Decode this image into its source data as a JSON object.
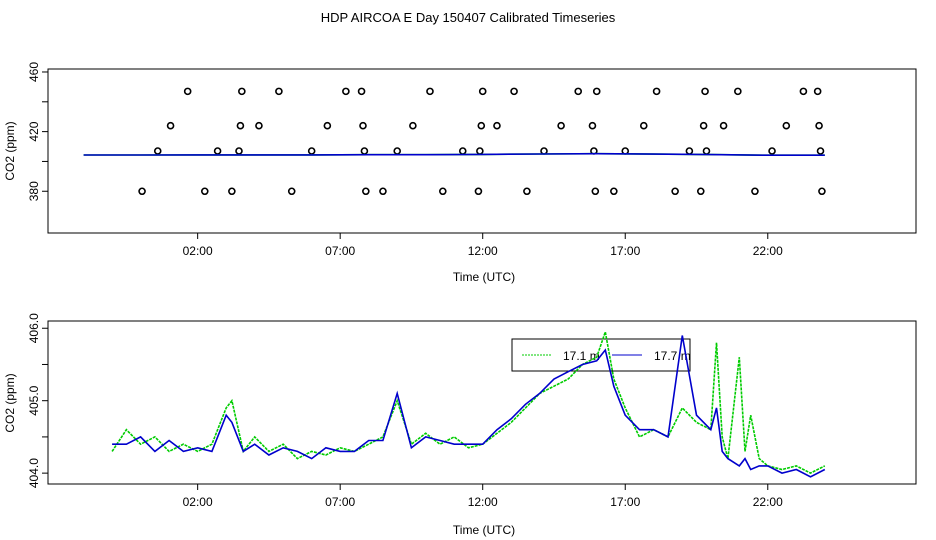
{
  "title": "HDP AIRCOA E  Day 150407  Calibrated Timeseries",
  "colors": {
    "green": "#00cc00",
    "blue": "#0000cc",
    "points": "#000000"
  },
  "chart_data": [
    {
      "type": "scatter",
      "xlabel": "Time (UTC)",
      "ylabel": "CO2 (ppm)",
      "x_unit": "hours UTC",
      "xlim": [
        -3.25,
        27.2
      ],
      "ylim": [
        352,
        462
      ],
      "x_tick_labels": [
        "02:00",
        "07:00",
        "12:00",
        "17:00",
        "22:00"
      ],
      "x_tick_values": [
        2,
        7,
        12,
        17,
        22
      ],
      "y_tick_labels": [
        "380",
        "420",
        "460"
      ],
      "y_tick_values": [
        380,
        420,
        460
      ],
      "series": [
        {
          "kind": "points",
          "x": [
            0.05,
            0.6,
            1.05,
            1.65,
            2.25,
            2.7,
            3.2,
            3.45,
            3.5,
            3.55,
            4.15,
            4.85,
            5.3,
            6.0,
            6.55,
            7.2,
            7.75,
            7.8,
            7.85,
            7.9,
            8.5,
            9.0,
            9.55,
            10.15,
            10.6,
            11.3,
            11.85,
            11.9,
            11.95,
            12.0,
            12.5,
            13.1,
            13.55,
            14.15,
            14.75,
            15.35,
            15.85,
            15.9,
            15.95,
            16.0,
            16.6,
            17.0,
            17.65,
            18.1,
            18.75,
            19.25,
            19.65,
            19.75,
            19.8,
            19.85,
            20.45,
            20.95,
            21.55,
            22.15,
            22.65,
            23.25,
            23.75,
            23.8,
            23.85,
            23.9
          ],
          "y": [
            380,
            407,
            424,
            447,
            380,
            407,
            380,
            407,
            424,
            447,
            424,
            447,
            380,
            407,
            424,
            447,
            447,
            424,
            407,
            380,
            380,
            407,
            424,
            447,
            380,
            407,
            380,
            407,
            424,
            447,
            424,
            447,
            380,
            407,
            424,
            447,
            424,
            407,
            380,
            447,
            380,
            407,
            424,
            447,
            380,
            407,
            380,
            424,
            447,
            407,
            424,
            447,
            380,
            407,
            424,
            447,
            447,
            424,
            407,
            380
          ]
        },
        {
          "kind": "line",
          "color": "#00cc00",
          "x": [
            -2,
            0,
            2,
            4,
            6,
            8,
            10,
            12,
            14,
            16,
            18,
            20,
            22,
            24
          ],
          "y": [
            404.3,
            404.3,
            404.4,
            404.4,
            404.4,
            404.5,
            404.5,
            404.7,
            405.0,
            405.2,
            404.9,
            404.6,
            404.2,
            404.2
          ]
        },
        {
          "kind": "line",
          "color": "#0000cc",
          "x": [
            -2,
            0,
            2,
            4,
            6,
            8,
            10,
            12,
            14,
            16,
            18,
            20,
            22,
            24
          ],
          "y": [
            404.3,
            404.3,
            404.4,
            404.4,
            404.4,
            404.5,
            404.5,
            404.7,
            405.0,
            405.2,
            404.9,
            404.6,
            404.2,
            404.2
          ]
        }
      ]
    },
    {
      "type": "line",
      "xlabel": "Time (UTC)",
      "ylabel": "CO2 (ppm)",
      "x_unit": "hours UTC",
      "xlim": [
        -3.25,
        27.2
      ],
      "ylim": [
        403.85,
        406.1
      ],
      "x_tick_labels": [
        "02:00",
        "07:00",
        "12:00",
        "17:00",
        "22:00"
      ],
      "x_tick_values": [
        2,
        7,
        12,
        17,
        22
      ],
      "y_tick_labels": [
        "404.0",
        "405.0",
        "406.0"
      ],
      "y_tick_values": [
        404.0,
        405.0,
        406.0
      ],
      "legend": {
        "position": "top-right",
        "entries": [
          "17.1 m",
          "17.7 m"
        ]
      },
      "series": [
        {
          "name": "17.1 m",
          "color": "#00cc00",
          "x": [
            -1,
            -0.5,
            0,
            0.5,
            1,
            1.5,
            2,
            2.5,
            3,
            3.2,
            3.6,
            4,
            4.5,
            5,
            5.5,
            6,
            6.5,
            7,
            7.5,
            8,
            8.5,
            9,
            9.5,
            10,
            10.5,
            11,
            11.5,
            12,
            12.5,
            13,
            13.5,
            14,
            14.5,
            15,
            15.5,
            16,
            16.3,
            16.6,
            17,
            17.5,
            18,
            18.5,
            19,
            19.5,
            20,
            20.2,
            20.4,
            20.6,
            21,
            21.2,
            21.4,
            21.7,
            22,
            22.5,
            23,
            23.5,
            24
          ],
          "y": [
            404.3,
            404.6,
            404.4,
            404.5,
            404.3,
            404.4,
            404.3,
            404.4,
            404.9,
            405.0,
            404.3,
            404.5,
            404.3,
            404.4,
            404.2,
            404.3,
            404.25,
            404.35,
            404.3,
            404.4,
            404.5,
            405.0,
            404.4,
            404.55,
            404.4,
            404.5,
            404.35,
            404.4,
            404.55,
            404.7,
            404.9,
            405.1,
            405.2,
            405.3,
            405.5,
            405.6,
            405.95,
            405.3,
            404.9,
            404.5,
            404.6,
            404.5,
            404.9,
            404.7,
            404.6,
            405.8,
            404.5,
            404.2,
            405.6,
            404.3,
            404.8,
            404.2,
            404.1,
            404.05,
            404.1,
            404.0,
            404.1
          ]
        },
        {
          "name": "17.7 m",
          "color": "#0000cc",
          "x": [
            -1,
            -0.5,
            0,
            0.5,
            1,
            1.5,
            2,
            2.5,
            3,
            3.2,
            3.6,
            4,
            4.5,
            5,
            5.5,
            6,
            6.5,
            7,
            7.5,
            8,
            8.5,
            9,
            9.5,
            10,
            10.5,
            11,
            11.5,
            12,
            12.5,
            13,
            13.5,
            14,
            14.5,
            15,
            15.5,
            16,
            16.3,
            16.6,
            17,
            17.5,
            18,
            18.5,
            19,
            19.5,
            20,
            20.2,
            20.4,
            20.6,
            21,
            21.2,
            21.4,
            21.7,
            22,
            22.5,
            23,
            23.5,
            24
          ],
          "y": [
            404.4,
            404.4,
            404.5,
            404.3,
            404.45,
            404.3,
            404.35,
            404.3,
            404.8,
            404.7,
            404.3,
            404.4,
            404.25,
            404.35,
            404.3,
            404.2,
            404.35,
            404.3,
            404.3,
            404.45,
            404.45,
            405.1,
            404.35,
            404.5,
            404.45,
            404.4,
            404.4,
            404.4,
            404.6,
            404.75,
            404.95,
            405.1,
            405.3,
            405.4,
            405.5,
            405.55,
            405.7,
            405.2,
            404.8,
            404.6,
            404.6,
            404.5,
            405.9,
            404.8,
            404.6,
            404.9,
            404.3,
            404.2,
            404.1,
            404.2,
            404.05,
            404.1,
            404.1,
            404.0,
            404.05,
            403.95,
            404.05
          ]
        }
      ]
    }
  ]
}
